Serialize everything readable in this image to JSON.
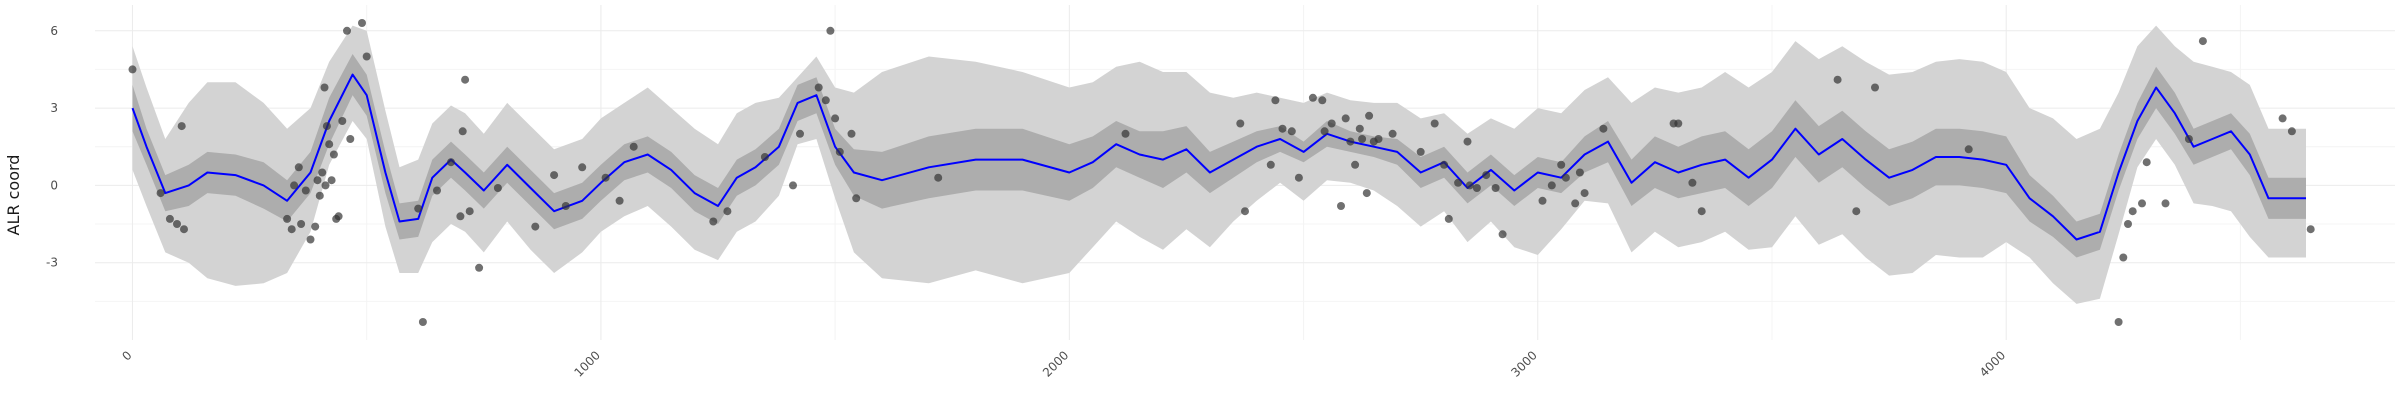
{
  "chart_data": {
    "type": "line",
    "title": "",
    "xlabel": "",
    "ylabel": "ALR coord",
    "xlim": [
      -80,
      4830
    ],
    "ylim": [
      -6,
      7
    ],
    "x_ticks": [
      0,
      1000,
      2000,
      3000,
      4000
    ],
    "y_ticks": [
      -3,
      0,
      3,
      6
    ],
    "grid": true,
    "colors": {
      "mean": "#0000ff",
      "band_outer": "#d3d3d3",
      "band_inner": "#adadad",
      "points": "#333333"
    },
    "series": [
      {
        "kind": "mean_with_bands",
        "x": [
          0,
          30,
          70,
          120,
          160,
          220,
          280,
          330,
          380,
          420,
          470,
          500,
          540,
          570,
          610,
          640,
          680,
          710,
          750,
          800,
          850,
          900,
          960,
          1000,
          1050,
          1100,
          1150,
          1200,
          1250,
          1290,
          1330,
          1380,
          1420,
          1460,
          1500,
          1540,
          1600,
          1700,
          1800,
          1900,
          2000,
          2050,
          2100,
          2150,
          2200,
          2250,
          2300,
          2350,
          2400,
          2450,
          2500,
          2550,
          2600,
          2650,
          2700,
          2750,
          2800,
          2850,
          2900,
          2950,
          3000,
          3050,
          3100,
          3150,
          3200,
          3250,
          3300,
          3350,
          3400,
          3450,
          3500,
          3550,
          3600,
          3650,
          3700,
          3750,
          3800,
          3850,
          3900,
          3950,
          4000,
          4050,
          4100,
          4150,
          4200,
          4240,
          4280,
          4320,
          4360,
          4400,
          4440,
          4480,
          4520,
          4560,
          4600,
          4640
        ],
        "mean": [
          3.0,
          1.5,
          -0.3,
          0.0,
          0.5,
          0.4,
          0.0,
          -0.6,
          0.5,
          2.5,
          4.3,
          3.5,
          0.5,
          -1.4,
          -1.3,
          0.3,
          1.0,
          0.5,
          -0.2,
          0.8,
          -0.1,
          -1.0,
          -0.6,
          0.1,
          0.9,
          1.2,
          0.6,
          -0.3,
          -0.8,
          0.3,
          0.7,
          1.5,
          3.2,
          3.5,
          1.5,
          0.5,
          0.2,
          0.7,
          1.0,
          1.0,
          0.5,
          0.9,
          1.6,
          1.2,
          1.0,
          1.4,
          0.5,
          1.0,
          1.5,
          1.8,
          1.3,
          2.0,
          1.7,
          1.5,
          1.3,
          0.5,
          0.9,
          -0.1,
          0.6,
          -0.2,
          0.5,
          0.3,
          1.2,
          1.7,
          0.1,
          0.9,
          0.5,
          0.8,
          1.0,
          0.3,
          1.0,
          2.2,
          1.2,
          1.8,
          1.0,
          0.3,
          0.6,
          1.1,
          1.1,
          1.0,
          0.8,
          -0.5,
          -1.2,
          -2.1,
          -1.8,
          0.5,
          2.5,
          3.8,
          2.8,
          1.5,
          1.8,
          2.1,
          1.2,
          -0.5,
          -0.5,
          -0.5
        ],
        "inner_lower": [
          2.1,
          0.8,
          -1.0,
          -0.8,
          -0.3,
          -0.4,
          -0.9,
          -1.4,
          -0.3,
          1.6,
          3.5,
          2.7,
          -0.3,
          -2.1,
          -2.0,
          -0.4,
          0.3,
          -0.2,
          -0.9,
          0.1,
          -0.8,
          -1.7,
          -1.3,
          -0.6,
          0.2,
          0.5,
          -0.1,
          -1.0,
          -1.5,
          -0.4,
          0.0,
          0.8,
          2.5,
          2.8,
          0.8,
          -0.4,
          -0.9,
          -0.5,
          -0.2,
          -0.2,
          -0.6,
          -0.1,
          0.7,
          0.3,
          -0.1,
          0.5,
          -0.3,
          0.3,
          0.9,
          1.3,
          0.9,
          1.5,
          1.3,
          1.1,
          0.8,
          -0.1,
          0.3,
          -0.7,
          0.0,
          -0.8,
          -0.1,
          -0.3,
          0.5,
          0.9,
          -0.8,
          -0.1,
          -0.5,
          -0.3,
          -0.1,
          -0.8,
          -0.1,
          1.1,
          0.1,
          0.7,
          -0.1,
          -0.8,
          -0.5,
          0.0,
          0.0,
          -0.1,
          -0.3,
          -1.4,
          -2.0,
          -2.8,
          -2.5,
          -0.2,
          1.8,
          3.0,
          2.0,
          0.8,
          1.1,
          1.4,
          0.4,
          -1.3,
          -1.3,
          -1.3
        ],
        "inner_upper": [
          3.9,
          2.2,
          0.4,
          0.8,
          1.3,
          1.2,
          0.9,
          0.2,
          1.3,
          3.4,
          5.1,
          4.3,
          1.3,
          -0.7,
          -0.6,
          1.0,
          1.7,
          1.2,
          0.5,
          1.5,
          0.6,
          -0.3,
          0.1,
          0.8,
          1.6,
          1.9,
          1.3,
          0.4,
          -0.1,
          1.0,
          1.4,
          2.2,
          3.9,
          4.2,
          2.2,
          1.4,
          1.3,
          1.9,
          2.2,
          2.2,
          1.6,
          1.9,
          2.5,
          2.1,
          2.1,
          2.3,
          1.3,
          1.7,
          2.1,
          2.3,
          1.7,
          2.5,
          2.1,
          1.9,
          1.8,
          1.1,
          1.5,
          0.5,
          1.2,
          0.4,
          1.1,
          0.9,
          1.9,
          2.5,
          1.0,
          1.9,
          1.5,
          1.9,
          2.1,
          1.4,
          2.1,
          3.3,
          2.3,
          2.9,
          2.1,
          1.4,
          1.7,
          2.2,
          2.2,
          2.1,
          1.9,
          0.4,
          -0.4,
          -1.4,
          -1.1,
          1.2,
          3.2,
          4.6,
          3.6,
          2.2,
          2.5,
          2.8,
          2.0,
          0.3,
          0.3,
          0.3
        ],
        "outer_lower": [
          0.6,
          -0.8,
          -2.6,
          -3.0,
          -3.6,
          -3.9,
          -3.8,
          -3.4,
          -1.8,
          0.8,
          2.5,
          1.8,
          -1.6,
          -3.4,
          -3.4,
          -2.2,
          -1.5,
          -1.8,
          -2.6,
          -1.4,
          -2.5,
          -3.4,
          -2.6,
          -1.8,
          -1.2,
          -0.8,
          -1.6,
          -2.5,
          -2.9,
          -1.8,
          -1.4,
          -0.4,
          1.6,
          1.8,
          -0.5,
          -2.6,
          -3.6,
          -3.8,
          -3.3,
          -3.8,
          -3.4,
          -2.4,
          -1.4,
          -2.0,
          -2.5,
          -1.7,
          -2.4,
          -1.4,
          -0.6,
          0.1,
          -0.6,
          0.2,
          0.1,
          -0.2,
          -0.8,
          -1.6,
          -1.0,
          -2.2,
          -1.4,
          -2.4,
          -2.7,
          -1.7,
          -0.6,
          -0.7,
          -2.6,
          -1.8,
          -2.4,
          -2.2,
          -1.8,
          -2.5,
          -2.4,
          -1.2,
          -2.3,
          -1.9,
          -2.8,
          -3.5,
          -3.4,
          -2.7,
          -2.8,
          -2.8,
          -2.2,
          -2.8,
          -3.8,
          -4.6,
          -4.4,
          -1.9,
          0.7,
          1.8,
          0.8,
          -0.7,
          -0.8,
          -1.0,
          -2.0,
          -2.8,
          -2.8,
          -2.8
        ],
        "outer_upper": [
          5.4,
          3.8,
          1.8,
          3.2,
          4.0,
          4.0,
          3.2,
          2.2,
          3.0,
          4.8,
          6.2,
          6.0,
          2.9,
          0.7,
          1.0,
          2.4,
          3.1,
          2.8,
          2.0,
          3.2,
          2.3,
          1.4,
          1.8,
          2.6,
          3.2,
          3.8,
          3.0,
          2.2,
          1.6,
          2.8,
          3.2,
          3.4,
          4.2,
          5.0,
          3.8,
          3.6,
          4.4,
          5.0,
          4.8,
          4.4,
          3.8,
          4.0,
          4.6,
          4.8,
          4.4,
          4.4,
          3.6,
          3.4,
          3.6,
          3.4,
          3.2,
          3.6,
          3.3,
          3.2,
          3.2,
          2.6,
          2.8,
          2.0,
          2.6,
          2.2,
          3.0,
          2.8,
          3.7,
          4.2,
          3.2,
          3.8,
          3.6,
          3.8,
          4.4,
          3.8,
          4.4,
          5.6,
          4.9,
          5.4,
          4.8,
          4.3,
          4.4,
          4.8,
          4.9,
          4.8,
          4.4,
          3.0,
          2.6,
          1.8,
          2.2,
          3.6,
          5.4,
          6.2,
          5.4,
          4.8,
          4.6,
          4.4,
          3.9,
          2.2,
          2.2,
          2.2
        ]
      },
      {
        "kind": "observations",
        "points": [
          {
            "x": 0,
            "y": 4.5
          },
          {
            "x": 60,
            "y": -0.3
          },
          {
            "x": 80,
            "y": -1.3
          },
          {
            "x": 95,
            "y": -1.5
          },
          {
            "x": 105,
            "y": 2.3
          },
          {
            "x": 110,
            "y": -1.7
          },
          {
            "x": 330,
            "y": -1.3
          },
          {
            "x": 340,
            "y": -1.7
          },
          {
            "x": 345,
            "y": 0.0
          },
          {
            "x": 355,
            "y": 0.7
          },
          {
            "x": 360,
            "y": -1.5
          },
          {
            "x": 370,
            "y": -0.2
          },
          {
            "x": 380,
            "y": -2.1
          },
          {
            "x": 390,
            "y": -1.6
          },
          {
            "x": 395,
            "y": 0.2
          },
          {
            "x": 400,
            "y": -0.4
          },
          {
            "x": 405,
            "y": 0.5
          },
          {
            "x": 410,
            "y": 3.8
          },
          {
            "x": 412,
            "y": 0.0
          },
          {
            "x": 415,
            "y": 2.3
          },
          {
            "x": 420,
            "y": 1.6
          },
          {
            "x": 425,
            "y": 0.2
          },
          {
            "x": 430,
            "y": 1.2
          },
          {
            "x": 435,
            "y": -1.3
          },
          {
            "x": 440,
            "y": -1.2
          },
          {
            "x": 448,
            "y": 2.5
          },
          {
            "x": 458,
            "y": 6.0
          },
          {
            "x": 465,
            "y": 1.8
          },
          {
            "x": 490,
            "y": 6.3
          },
          {
            "x": 500,
            "y": 5.0
          },
          {
            "x": 610,
            "y": -0.9
          },
          {
            "x": 620,
            "y": -5.3
          },
          {
            "x": 650,
            "y": -0.2
          },
          {
            "x": 680,
            "y": 0.9
          },
          {
            "x": 700,
            "y": -1.2
          },
          {
            "x": 705,
            "y": 2.1
          },
          {
            "x": 710,
            "y": 4.1
          },
          {
            "x": 720,
            "y": -1.0
          },
          {
            "x": 740,
            "y": -3.2
          },
          {
            "x": 780,
            "y": -0.1
          },
          {
            "x": 860,
            "y": -1.6
          },
          {
            "x": 900,
            "y": 0.4
          },
          {
            "x": 925,
            "y": -0.8
          },
          {
            "x": 960,
            "y": 0.7
          },
          {
            "x": 1010,
            "y": 0.3
          },
          {
            "x": 1040,
            "y": -0.6
          },
          {
            "x": 1070,
            "y": 1.5
          },
          {
            "x": 1240,
            "y": -1.4
          },
          {
            "x": 1270,
            "y": -1.0
          },
          {
            "x": 1350,
            "y": 1.1
          },
          {
            "x": 1410,
            "y": 0.0
          },
          {
            "x": 1425,
            "y": 2.0
          },
          {
            "x": 1465,
            "y": 3.8
          },
          {
            "x": 1480,
            "y": 3.3
          },
          {
            "x": 1490,
            "y": 6.0
          },
          {
            "x": 1500,
            "y": 2.6
          },
          {
            "x": 1510,
            "y": 1.3
          },
          {
            "x": 1535,
            "y": 2.0
          },
          {
            "x": 1545,
            "y": -0.5
          },
          {
            "x": 1720,
            "y": 0.3
          },
          {
            "x": 2120,
            "y": 2.0
          },
          {
            "x": 2365,
            "y": 2.4
          },
          {
            "x": 2375,
            "y": -1.0
          },
          {
            "x": 2430,
            "y": 0.8
          },
          {
            "x": 2440,
            "y": 3.3
          },
          {
            "x": 2455,
            "y": 2.2
          },
          {
            "x": 2475,
            "y": 2.1
          },
          {
            "x": 2490,
            "y": 0.3
          },
          {
            "x": 2520,
            "y": 3.4
          },
          {
            "x": 2540,
            "y": 3.3
          },
          {
            "x": 2545,
            "y": 2.1
          },
          {
            "x": 2560,
            "y": 2.4
          },
          {
            "x": 2580,
            "y": -0.8
          },
          {
            "x": 2590,
            "y": 2.6
          },
          {
            "x": 2600,
            "y": 1.7
          },
          {
            "x": 2610,
            "y": 0.8
          },
          {
            "x": 2620,
            "y": 2.2
          },
          {
            "x": 2625,
            "y": 1.8
          },
          {
            "x": 2635,
            "y": -0.3
          },
          {
            "x": 2640,
            "y": 2.7
          },
          {
            "x": 2650,
            "y": 1.7
          },
          {
            "x": 2660,
            "y": 1.8
          },
          {
            "x": 2690,
            "y": 2.0
          },
          {
            "x": 2750,
            "y": 1.3
          },
          {
            "x": 2780,
            "y": 2.4
          },
          {
            "x": 2800,
            "y": 0.8
          },
          {
            "x": 2810,
            "y": -1.3
          },
          {
            "x": 2830,
            "y": 0.1
          },
          {
            "x": 2850,
            "y": 1.7
          },
          {
            "x": 2855,
            "y": 0.0
          },
          {
            "x": 2870,
            "y": -0.1
          },
          {
            "x": 2890,
            "y": 0.4
          },
          {
            "x": 2910,
            "y": -0.1
          },
          {
            "x": 2925,
            "y": -1.9
          },
          {
            "x": 3010,
            "y": -0.6
          },
          {
            "x": 3030,
            "y": 0.0
          },
          {
            "x": 3050,
            "y": 0.8
          },
          {
            "x": 3060,
            "y": 0.3
          },
          {
            "x": 3080,
            "y": -0.7
          },
          {
            "x": 3090,
            "y": 0.5
          },
          {
            "x": 3100,
            "y": -0.3
          },
          {
            "x": 3140,
            "y": 2.2
          },
          {
            "x": 3290,
            "y": 2.4
          },
          {
            "x": 3300,
            "y": 2.4
          },
          {
            "x": 3330,
            "y": 0.1
          },
          {
            "x": 3350,
            "y": -1.0
          },
          {
            "x": 3640,
            "y": 4.1
          },
          {
            "x": 3680,
            "y": -1.0
          },
          {
            "x": 3720,
            "y": 3.8
          },
          {
            "x": 3920,
            "y": 1.4
          },
          {
            "x": 4240,
            "y": -5.3
          },
          {
            "x": 4250,
            "y": -2.8
          },
          {
            "x": 4260,
            "y": -1.5
          },
          {
            "x": 4270,
            "y": -1.0
          },
          {
            "x": 4290,
            "y": -0.7
          },
          {
            "x": 4300,
            "y": 0.9
          },
          {
            "x": 4340,
            "y": -0.7
          },
          {
            "x": 4390,
            "y": 1.8
          },
          {
            "x": 4420,
            "y": 5.6
          },
          {
            "x": 4590,
            "y": 2.6
          },
          {
            "x": 4610,
            "y": 2.1
          },
          {
            "x": 4650,
            "y": -1.7
          }
        ]
      }
    ]
  }
}
